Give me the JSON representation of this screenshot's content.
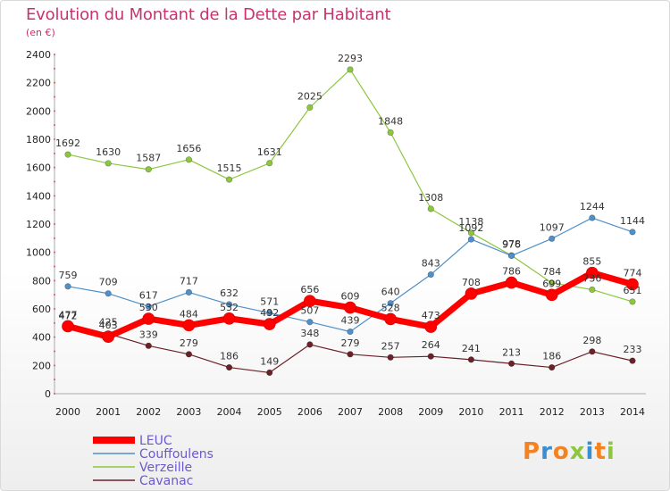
{
  "title": "Evolution du Montant de la Dette par Habitant",
  "subtitle": "(en €)",
  "logo": {
    "text": "Proxiti",
    "colors": [
      "#f58220",
      "#3a8fd0",
      "#f58220",
      "#8dc63f",
      "#3a8fd0",
      "#f58220",
      "#8dc63f"
    ]
  },
  "chart_data": {
    "type": "line",
    "x": [
      "2000",
      "2001",
      "2002",
      "2003",
      "2004",
      "2005",
      "2006",
      "2007",
      "2008",
      "2009",
      "2010",
      "2011",
      "2012",
      "2013",
      "2014"
    ],
    "ylim": [
      0,
      2400
    ],
    "yticks": [
      0,
      200,
      400,
      600,
      800,
      1000,
      1200,
      1400,
      1600,
      1800,
      2000,
      2200,
      2400
    ],
    "grid": false,
    "legend_position": "bottom-left",
    "series": [
      {
        "name": "LEUC",
        "color": "#ff0000",
        "values": [
          477,
          403,
          530,
          484,
          532,
          492,
          656,
          609,
          528,
          473,
          708,
          786,
          699,
          855,
          774
        ]
      },
      {
        "name": "Couffoulens",
        "color": "#4f90c8",
        "values": [
          759,
          709,
          617,
          717,
          632,
          571,
          507,
          439,
          640,
          843,
          1092,
          976,
          1097,
          1244,
          1144
        ]
      },
      {
        "name": "Verzeille",
        "color": "#8cc63e",
        "values": [
          1692,
          1630,
          1587,
          1656,
          1515,
          1631,
          2025,
          2293,
          1848,
          1308,
          1138,
          978,
          784,
          736,
          651
        ]
      },
      {
        "name": "Cavanac",
        "color": "#6b2128",
        "values": [
          472,
          425,
          339,
          279,
          186,
          149,
          348,
          279,
          257,
          264,
          241,
          213,
          186,
          298,
          233
        ]
      }
    ]
  }
}
